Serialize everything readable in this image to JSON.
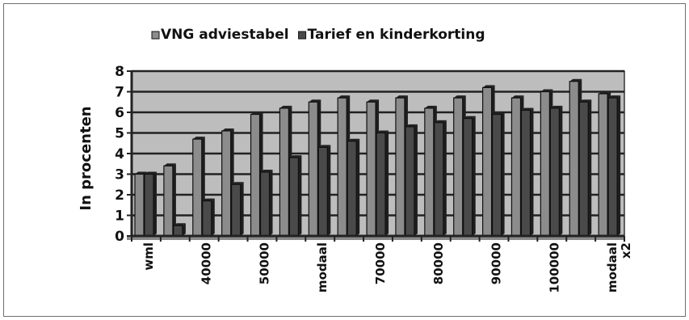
{
  "chart_data": {
    "type": "bar",
    "title": "",
    "xlabel": "",
    "ylabel": "In procenten",
    "ylim": [
      0,
      8
    ],
    "yticks": [
      0,
      1,
      2,
      3,
      4,
      5,
      6,
      7,
      8
    ],
    "grid": true,
    "legend_position": "top",
    "categories": [
      "wml",
      "",
      "40000",
      "",
      "50000",
      "",
      "modaal",
      "",
      "70000",
      "",
      "80000",
      "",
      "90000",
      "",
      "100000",
      "",
      "modaal x2"
    ],
    "series": [
      {
        "name": "VNG adviestabel",
        "color": "#8c8c8c",
        "values": [
          3.0,
          3.4,
          4.7,
          5.1,
          5.9,
          6.2,
          6.5,
          6.7,
          6.5,
          6.7,
          6.2,
          6.7,
          7.2,
          6.7,
          7.0,
          7.5,
          6.9
        ]
      },
      {
        "name": "Tarief en kinderkorting",
        "color": "#4a4a4a",
        "values": [
          3.0,
          0.5,
          1.7,
          2.5,
          3.1,
          3.8,
          4.3,
          4.6,
          5.0,
          5.3,
          5.5,
          5.7,
          5.9,
          6.1,
          6.2,
          6.5,
          6.7
        ]
      }
    ]
  }
}
